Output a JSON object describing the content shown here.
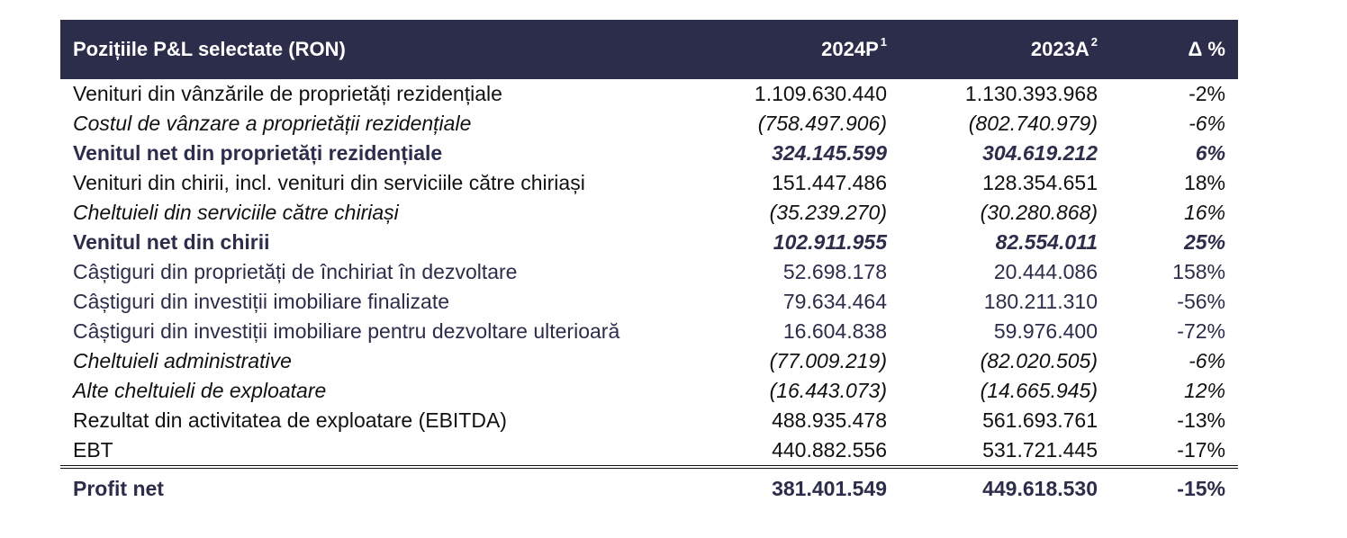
{
  "header": {
    "col_label": "Pozițiile P&L selectate (RON)",
    "col_2024": "2024P",
    "col_2024_sup": "1",
    "col_2023": "2023A",
    "col_2023_sup": "2",
    "col_delta": "Δ %"
  },
  "rows": [
    {
      "label": "Venituri din vânzările de proprietăți rezidențiale",
      "v2024": "1.109.630.440",
      "v2023": "1.130.393.968",
      "delta": "-2%"
    },
    {
      "label": "Costul de vânzare a proprietății rezidențiale",
      "v2024": "(758.497.906)",
      "v2023": "(802.740.979)",
      "delta": "-6%"
    },
    {
      "label": "Venitul net din proprietăți rezidențiale",
      "v2024": "324.145.599",
      "v2023": "304.619.212",
      "delta": "6%"
    },
    {
      "label": "Venituri din chirii, incl. venituri din serviciile către chiriași",
      "v2024": "151.447.486",
      "v2023": "128.354.651",
      "delta": "18%"
    },
    {
      "label": "Cheltuieli din serviciile către chiriași",
      "v2024": "(35.239.270)",
      "v2023": "(30.280.868)",
      "delta": "16%"
    },
    {
      "label": "Venitul net din chirii",
      "v2024": "102.911.955",
      "v2023": "82.554.011",
      "delta": "25%"
    },
    {
      "label": "Câștiguri din proprietăți de închiriat în dezvoltare",
      "v2024": "52.698.178",
      "v2023": "20.444.086",
      "delta": "158%"
    },
    {
      "label": "Câștiguri din investiții imobiliare finalizate",
      "v2024": "79.634.464",
      "v2023": "180.211.310",
      "delta": "-56%"
    },
    {
      "label": "Câștiguri din investiții imobiliare pentru dezvoltare ulterioară",
      "v2024": "16.604.838",
      "v2023": "59.976.400",
      "delta": "-72%"
    },
    {
      "label": "Cheltuieli administrative",
      "v2024": "(77.009.219)",
      "v2023": "(82.020.505)",
      "delta": "-6%"
    },
    {
      "label": "Alte cheltuieli de exploatare",
      "v2024": "(16.443.073)",
      "v2023": "(14.665.945)",
      "delta": "12%"
    },
    {
      "label": "Rezultat din activitatea de exploatare (EBITDA)",
      "v2024": "488.935.478",
      "v2023": "561.693.761",
      "delta": "-13%"
    },
    {
      "label": "EBT",
      "v2024": "440.882.556",
      "v2023": "531.721.445",
      "delta": "-17%"
    }
  ],
  "total": {
    "label": "Profit net",
    "v2024": "381.401.549",
    "v2023": "449.618.530",
    "delta": "-15%"
  },
  "colors": {
    "header_bg": "#2b2d4a",
    "accent_text": "#2b2d4a"
  }
}
